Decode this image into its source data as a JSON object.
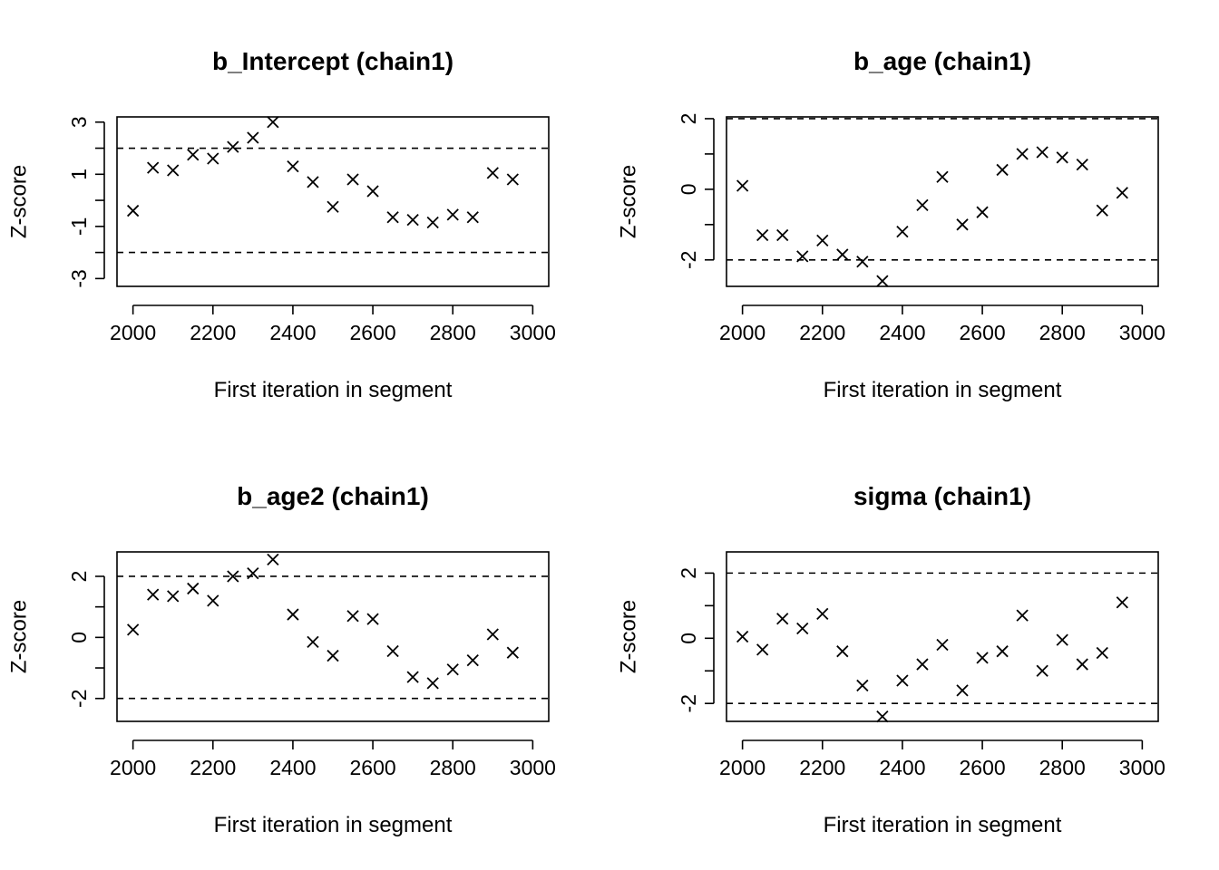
{
  "chart_data": [
    {
      "type": "scatter",
      "title": "b_Intercept (chain1)",
      "xlabel": "First iteration in segment",
      "ylabel": "Z-score",
      "xticks": [
        2000,
        2200,
        2400,
        2600,
        2800,
        3000
      ],
      "yticks": [
        -3,
        -1,
        1,
        3
      ],
      "minor_yticks": [
        -2,
        0,
        2
      ],
      "xlim": [
        1960,
        3040
      ],
      "ylim": [
        -3.3,
        3.2
      ],
      "ref_lines": [
        -2,
        2
      ],
      "marker": "x",
      "x": [
        2000,
        2050,
        2100,
        2150,
        2200,
        2250,
        2300,
        2350,
        2400,
        2450,
        2500,
        2550,
        2600,
        2650,
        2700,
        2750,
        2800,
        2850,
        2900,
        2950,
        3000
      ],
      "y": [
        -0.4,
        1.25,
        1.15,
        1.75,
        1.6,
        2.05,
        2.4,
        3.0,
        1.3,
        0.7,
        -0.25,
        0.8,
        0.35,
        -0.65,
        -0.75,
        -0.85,
        -0.55,
        -0.65,
        1.05,
        0.8,
        null
      ]
    },
    {
      "type": "scatter",
      "title": "b_age (chain1)",
      "xlabel": "First iteration in segment",
      "ylabel": "Z-score",
      "xticks": [
        2000,
        2200,
        2400,
        2600,
        2800,
        3000
      ],
      "yticks": [
        -2,
        0,
        2
      ],
      "minor_yticks": [
        -1,
        1
      ],
      "xlim": [
        1960,
        3040
      ],
      "ylim": [
        -2.75,
        2.05
      ],
      "ref_lines": [
        -2,
        2
      ],
      "marker": "x",
      "x": [
        2000,
        2050,
        2100,
        2150,
        2200,
        2250,
        2300,
        2350,
        2400,
        2450,
        2500,
        2550,
        2600,
        2650,
        2700,
        2750,
        2800,
        2850,
        2900,
        2950,
        3000
      ],
      "y": [
        0.1,
        -1.3,
        -1.3,
        -1.9,
        -1.45,
        -1.85,
        -2.05,
        -2.6,
        -1.2,
        -0.45,
        0.35,
        -1.0,
        -0.65,
        0.55,
        1.0,
        1.05,
        0.9,
        0.7,
        -0.6,
        -0.1,
        null
      ]
    },
    {
      "type": "scatter",
      "title": "b_age2 (chain1)",
      "xlabel": "First iteration in segment",
      "ylabel": "Z-score",
      "xticks": [
        2000,
        2200,
        2400,
        2600,
        2800,
        3000
      ],
      "yticks": [
        -2,
        0,
        2
      ],
      "minor_yticks": [
        -1,
        1
      ],
      "xlim": [
        1960,
        3040
      ],
      "ylim": [
        -2.75,
        2.8
      ],
      "ref_lines": [
        -2,
        2
      ],
      "marker": "x",
      "x": [
        2000,
        2050,
        2100,
        2150,
        2200,
        2250,
        2300,
        2350,
        2400,
        2450,
        2500,
        2550,
        2600,
        2650,
        2700,
        2750,
        2800,
        2850,
        2900,
        2950,
        3000
      ],
      "y": [
        0.25,
        1.4,
        1.35,
        1.6,
        1.2,
        2.0,
        2.1,
        2.55,
        0.75,
        -0.15,
        -0.6,
        0.7,
        0.6,
        -0.45,
        -1.3,
        -1.5,
        -1.05,
        -0.75,
        0.1,
        -0.5,
        null
      ]
    },
    {
      "type": "scatter",
      "title": "sigma (chain1)",
      "xlabel": "First iteration in segment",
      "ylabel": "Z-score",
      "xticks": [
        2000,
        2200,
        2400,
        2600,
        2800,
        3000
      ],
      "yticks": [
        -2,
        0,
        2
      ],
      "minor_yticks": [
        -1,
        1
      ],
      "xlim": [
        1960,
        3040
      ],
      "ylim": [
        -2.55,
        2.65
      ],
      "ref_lines": [
        -2,
        2
      ],
      "marker": "x",
      "x": [
        2000,
        2050,
        2100,
        2150,
        2200,
        2250,
        2300,
        2350,
        2400,
        2450,
        2500,
        2550,
        2600,
        2650,
        2700,
        2750,
        2800,
        2850,
        2900,
        2950,
        3000
      ],
      "y": [
        0.05,
        -0.35,
        0.6,
        0.3,
        0.75,
        -0.4,
        -1.45,
        -2.4,
        -1.3,
        -0.8,
        -0.2,
        -1.6,
        -0.6,
        -0.4,
        0.7,
        -1.0,
        -0.05,
        -0.8,
        -0.45,
        1.1,
        null
      ]
    }
  ]
}
